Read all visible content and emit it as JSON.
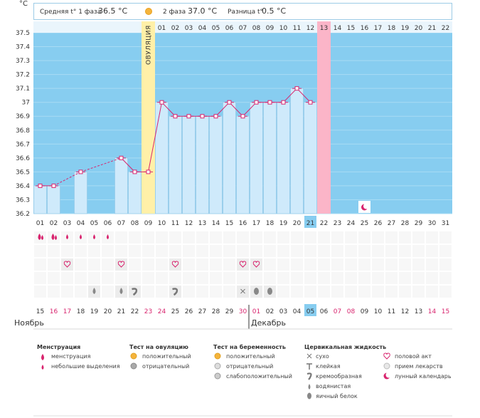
{
  "chart_data": {
    "type": "line",
    "title": "",
    "unit_label": "°C",
    "header": {
      "phase1_label": "Средняя t° 1 фаза",
      "phase1_value": "36.5 °C",
      "phase2_label": "2 фаза",
      "phase2_value": "37.0 °C",
      "diff_label": "Разница t°",
      "diff_value": "0.5 °C"
    },
    "ovulation_label": "ОВУЛЯЦИЯ",
    "ylim": [
      36.2,
      37.5
    ],
    "y_ticks": [
      "36.2",
      "36.3",
      "36.4",
      "36.5",
      "36.6",
      "36.7",
      "36.8",
      "36.9",
      "37",
      "37.1",
      "37.2",
      "37.3",
      "37.4",
      "37.5"
    ],
    "phase2_day_labels": [
      "01",
      "02",
      "03",
      "04",
      "05",
      "06",
      "07",
      "08",
      "09",
      "10",
      "11",
      "12",
      "13",
      "14",
      "15",
      "16",
      "17",
      "18",
      "19",
      "20",
      "21",
      "22"
    ],
    "phase2_highlight_index": 12,
    "cycle_days": [
      "01",
      "02",
      "03",
      "04",
      "05",
      "06",
      "07",
      "08",
      "09",
      "10",
      "11",
      "12",
      "13",
      "14",
      "15",
      "16",
      "17",
      "18",
      "19",
      "20",
      "21",
      "22",
      "23",
      "24",
      "25",
      "26",
      "27",
      "28",
      "29",
      "30",
      "31"
    ],
    "cycle_highlight_index": 20,
    "temperatures": [
      36.4,
      36.4,
      null,
      36.5,
      null,
      null,
      36.6,
      36.5,
      36.5,
      37.0,
      36.9,
      36.9,
      36.9,
      36.9,
      37.0,
      36.9,
      37.0,
      37.0,
      37.0,
      37.1,
      37.0,
      null,
      null,
      null,
      null,
      null,
      null,
      null,
      null,
      null,
      null
    ],
    "menstruation_marks": [
      "heavy",
      "heavy2",
      "small",
      "small",
      "small",
      "small"
    ],
    "sex_days": [
      3,
      7,
      11,
      16,
      17
    ],
    "fluid_marks": [
      {
        "day": 5,
        "kind": "watery"
      },
      {
        "day": 7,
        "kind": "watery"
      },
      {
        "day": 8,
        "kind": "creamy"
      },
      {
        "day": 11,
        "kind": "creamy"
      },
      {
        "day": 16,
        "kind": "dry"
      },
      {
        "day": 17,
        "kind": "eggwhite"
      },
      {
        "day": 18,
        "kind": "eggwhite"
      }
    ],
    "moon_day": 25,
    "calendar_dates": [
      "15",
      "16",
      "17",
      "18",
      "19",
      "20",
      "21",
      "22",
      "23",
      "24",
      "25",
      "26",
      "27",
      "28",
      "29",
      "30",
      "01",
      "02",
      "03",
      "04",
      "05",
      "06",
      "07",
      "08",
      "09",
      "10",
      "11",
      "12",
      "13",
      "14",
      "15"
    ],
    "calendar_weekend_indices": [
      1,
      2,
      8,
      9,
      15,
      16,
      22,
      23,
      29,
      30
    ],
    "calendar_highlight_index": 20,
    "month_left": "Ноябрь",
    "month_right": "Декабрь",
    "colors": {
      "bar": "#cfeafb",
      "bar_edge": "#8fc6e6",
      "bg": "#87cdf0",
      "ovulation": "#fff0a8",
      "cycle_day13": "#fbb5c8",
      "line": "#d8246e",
      "weekend": "#d8246e"
    },
    "legend": {
      "menstruation": {
        "title": "Менструация",
        "items": [
          "менструация",
          "небольшие выделения"
        ]
      },
      "ovulation_test": {
        "title": "Тест на овуляцию",
        "items": [
          "положительный",
          "отрицательный"
        ]
      },
      "pregnancy_test": {
        "title": "Тест на беременность",
        "items": [
          "положительный",
          "отрицательный",
          "слабоположительный"
        ]
      },
      "cervical": {
        "title": "Цервикальная жидкость",
        "items": [
          "сухо",
          "клейкая",
          "кремообразная",
          "водянистая",
          "яичный белок"
        ]
      },
      "other": {
        "items": [
          "половой акт",
          "прием лекарств",
          "лунный календарь"
        ]
      }
    }
  }
}
